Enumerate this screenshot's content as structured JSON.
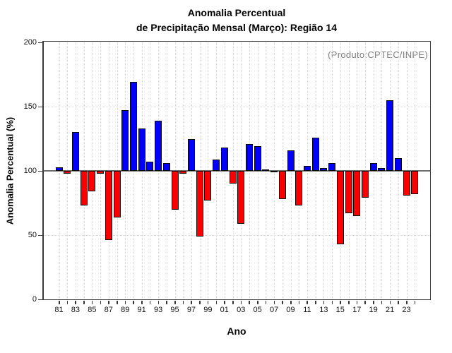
{
  "title": {
    "line1": "Anomalia Percentual",
    "line2": "de Precipitação Mensal (Março): Região 14"
  },
  "annotation": {
    "text": "(Produto:CPTEC/INPE)",
    "color": "#808080"
  },
  "axes": {
    "ylabel": "Anomalia Percentual (%)",
    "xlabel": "Ano",
    "ytick_labels": [
      "0",
      "50",
      "100",
      "150",
      "200"
    ],
    "xtick_labels_shown": [
      "81",
      "83",
      "85",
      "87",
      "89",
      "91",
      "93",
      "95",
      "97",
      "99",
      "01",
      "03",
      "05",
      "07",
      "09",
      "11",
      "13",
      "15",
      "17",
      "19",
      "21",
      "23"
    ]
  },
  "chart_data": {
    "type": "bar",
    "title": "Anomalia Percentual de Precipitação Mensal (Março): Região 14",
    "xlabel": "Ano",
    "ylabel": "Anomalia Percentual (%)",
    "ylim": [
      0,
      200
    ],
    "yticks": [
      0,
      50,
      100,
      150,
      200
    ],
    "grid_y": [
      50,
      150
    ],
    "grid_x": "every-year-dotted",
    "baseline": 100,
    "legend": "none",
    "bar_rule": "blue above 100, red below 100, bars anchored at 100",
    "colors": {
      "above_100": "#0000fa",
      "below_100": "#fa0000",
      "bar_border": "#0a0a0a",
      "grid": "#d9d9d9",
      "annotation": "#808080"
    },
    "categories": [
      "81",
      "82",
      "83",
      "84",
      "85",
      "86",
      "87",
      "88",
      "89",
      "90",
      "91",
      "92",
      "93",
      "94",
      "95",
      "96",
      "97",
      "98",
      "99",
      "00",
      "01",
      "02",
      "03",
      "04",
      "05",
      "06",
      "07",
      "08",
      "09",
      "10",
      "11",
      "12",
      "13",
      "14",
      "15",
      "16",
      "17",
      "18",
      "19",
      "20",
      "21",
      "22",
      "23",
      "24"
    ],
    "values": [
      103,
      98,
      130,
      73,
      84,
      98,
      46,
      64,
      147,
      169,
      133,
      107,
      139,
      106,
      70,
      98,
      125,
      49,
      77,
      109,
      118,
      90,
      59,
      121,
      119,
      101,
      99,
      78,
      116,
      73,
      104,
      126,
      102,
      106,
      43,
      67,
      65,
      79,
      106,
      102,
      155,
      110,
      81,
      82
    ],
    "xtick_label_every": 2
  }
}
